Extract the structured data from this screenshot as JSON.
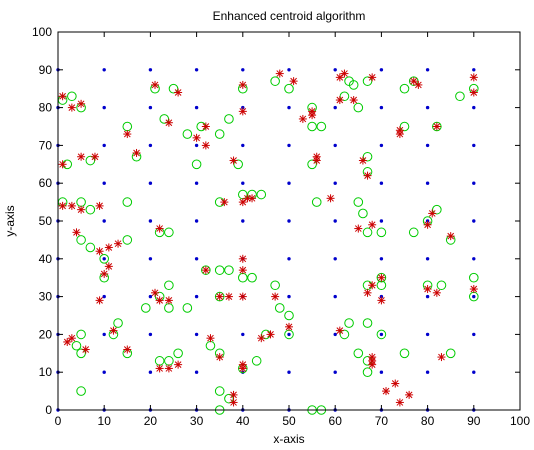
{
  "chart_data": {
    "type": "scatter",
    "title": "Enhanced centroid algorithm",
    "xlabel": "x-axis",
    "ylabel": "y-axis",
    "xlim": [
      0,
      100
    ],
    "ylim": [
      0,
      100
    ],
    "xticks": [
      "0",
      "10",
      "20",
      "30",
      "40",
      "50",
      "60",
      "70",
      "80",
      "90",
      "100"
    ],
    "yticks": [
      "0",
      "10",
      "20",
      "30",
      "40",
      "50",
      "60",
      "70",
      "80",
      "90",
      "100"
    ],
    "grid": false,
    "colors": {
      "anchor": "#0000cc",
      "actual": "#00cc00",
      "estimated": "#cc0000"
    },
    "series": [
      {
        "marker": "dot",
        "color": "#0000cc",
        "grid_x": [
          0,
          10,
          20,
          30,
          40,
          50,
          60,
          70,
          80,
          90
        ],
        "grid_y": [
          0,
          10,
          20,
          30,
          40,
          50,
          60,
          70,
          80,
          90
        ]
      },
      {
        "marker": "circle",
        "color": "#00cc00",
        "points": [
          [
            1,
            82
          ],
          [
            3,
            83
          ],
          [
            5,
            80
          ],
          [
            7,
            66
          ],
          [
            2,
            65
          ],
          [
            5,
            55
          ],
          [
            7,
            53
          ],
          [
            15,
            55
          ],
          [
            5,
            45
          ],
          [
            7,
            43
          ],
          [
            10,
            35
          ],
          [
            15,
            45
          ],
          [
            1,
            55
          ],
          [
            10,
            40
          ],
          [
            5,
            20
          ],
          [
            5,
            15
          ],
          [
            4,
            17
          ],
          [
            12,
            20
          ],
          [
            13,
            23
          ],
          [
            15,
            15
          ],
          [
            5,
            5
          ],
          [
            19,
            27
          ],
          [
            22,
            30
          ],
          [
            24,
            33
          ],
          [
            24,
            27
          ],
          [
            28,
            27
          ],
          [
            22,
            47
          ],
          [
            24,
            47
          ],
          [
            21,
            85
          ],
          [
            25,
            85
          ],
          [
            15,
            75
          ],
          [
            17,
            67
          ],
          [
            23,
            77
          ],
          [
            28,
            73
          ],
          [
            35,
            73
          ],
          [
            31,
            75
          ],
          [
            30,
            65
          ],
          [
            37,
            77
          ],
          [
            40,
            85
          ],
          [
            47,
            87
          ],
          [
            50,
            85
          ],
          [
            35,
            55
          ],
          [
            39,
            65
          ],
          [
            40,
            57
          ],
          [
            42,
            57
          ],
          [
            44,
            57
          ],
          [
            32,
            37
          ],
          [
            35,
            37
          ],
          [
            37,
            37
          ],
          [
            35,
            30
          ],
          [
            40,
            35
          ],
          [
            42,
            35
          ],
          [
            47,
            33
          ],
          [
            48,
            27
          ],
          [
            50,
            25
          ],
          [
            50,
            20
          ],
          [
            45,
            20
          ],
          [
            43,
            13
          ],
          [
            40,
            11
          ],
          [
            33,
            17
          ],
          [
            35,
            15
          ],
          [
            22,
            13
          ],
          [
            24,
            13
          ],
          [
            26,
            15
          ],
          [
            35,
            5
          ],
          [
            37,
            3
          ],
          [
            35,
            0
          ],
          [
            55,
            0
          ],
          [
            57,
            0
          ],
          [
            55,
            80
          ],
          [
            57,
            75
          ],
          [
            55,
            65
          ],
          [
            56,
            55
          ],
          [
            55,
            75
          ],
          [
            63,
            87
          ],
          [
            64,
            86
          ],
          [
            67,
            87
          ],
          [
            62,
            83
          ],
          [
            65,
            80
          ],
          [
            65,
            55
          ],
          [
            67,
            67
          ],
          [
            67,
            63
          ],
          [
            67,
            47
          ],
          [
            70,
            47
          ],
          [
            66,
            52
          ],
          [
            67,
            33
          ],
          [
            70,
            35
          ],
          [
            70,
            33
          ],
          [
            67,
            23
          ],
          [
            70,
            20
          ],
          [
            62,
            20
          ],
          [
            63,
            23
          ],
          [
            65,
            15
          ],
          [
            67,
            13
          ],
          [
            67,
            10
          ],
          [
            75,
            15
          ],
          [
            75,
            75
          ],
          [
            77,
            87
          ],
          [
            75,
            85
          ],
          [
            82,
            75
          ],
          [
            80,
            50
          ],
          [
            82,
            53
          ],
          [
            77,
            47
          ],
          [
            80,
            33
          ],
          [
            83,
            33
          ],
          [
            85,
            45
          ],
          [
            85,
            15
          ],
          [
            87,
            83
          ],
          [
            90,
            85
          ],
          [
            90,
            35
          ],
          [
            90,
            30
          ]
        ]
      },
      {
        "marker": "plus",
        "color": "#cc0000",
        "points": [
          [
            1,
            83
          ],
          [
            3,
            80
          ],
          [
            5,
            81
          ],
          [
            8,
            67
          ],
          [
            1,
            65
          ],
          [
            5,
            67
          ],
          [
            1,
            54
          ],
          [
            3,
            54
          ],
          [
            5,
            53
          ],
          [
            9,
            54
          ],
          [
            4,
            47
          ],
          [
            9,
            42
          ],
          [
            11,
            43
          ],
          [
            13,
            44
          ],
          [
            11,
            38
          ],
          [
            10,
            36
          ],
          [
            9,
            29
          ],
          [
            12,
            21
          ],
          [
            2,
            18
          ],
          [
            3,
            19
          ],
          [
            6,
            16
          ],
          [
            15,
            16
          ],
          [
            22,
            29
          ],
          [
            24,
            29
          ],
          [
            21,
            31
          ],
          [
            22,
            48
          ],
          [
            21,
            86
          ],
          [
            26,
            84
          ],
          [
            15,
            73
          ],
          [
            17,
            68
          ],
          [
            24,
            76
          ],
          [
            30,
            72
          ],
          [
            32,
            75
          ],
          [
            32,
            70
          ],
          [
            38,
            66
          ],
          [
            40,
            79
          ],
          [
            40,
            86
          ],
          [
            48,
            89
          ],
          [
            51,
            87
          ],
          [
            36,
            55
          ],
          [
            40,
            55
          ],
          [
            41,
            56
          ],
          [
            42,
            56
          ],
          [
            32,
            37
          ],
          [
            35,
            30
          ],
          [
            37,
            30
          ],
          [
            40,
            37
          ],
          [
            40,
            30
          ],
          [
            40,
            40
          ],
          [
            47,
            30
          ],
          [
            50,
            22
          ],
          [
            44,
            19
          ],
          [
            46,
            20
          ],
          [
            40,
            12
          ],
          [
            33,
            19
          ],
          [
            35,
            14
          ],
          [
            22,
            11
          ],
          [
            24,
            11
          ],
          [
            26,
            12
          ],
          [
            38,
            2
          ],
          [
            38,
            4
          ],
          [
            40,
            11
          ],
          [
            53,
            77
          ],
          [
            55,
            78
          ],
          [
            56,
            67
          ],
          [
            56,
            66
          ],
          [
            59,
            56
          ],
          [
            55,
            79
          ],
          [
            61,
            88
          ],
          [
            62,
            89
          ],
          [
            68,
            88
          ],
          [
            61,
            82
          ],
          [
            64,
            82
          ],
          [
            66,
            66
          ],
          [
            67,
            62
          ],
          [
            65,
            48
          ],
          [
            68,
            49
          ],
          [
            68,
            33
          ],
          [
            70,
            35
          ],
          [
            67,
            31
          ],
          [
            70,
            29
          ],
          [
            61,
            21
          ],
          [
            68,
            13
          ],
          [
            68,
            12
          ],
          [
            68,
            14
          ],
          [
            71,
            5
          ],
          [
            73,
            7
          ],
          [
            74,
            2
          ],
          [
            76,
            4
          ],
          [
            74,
            74
          ],
          [
            74,
            73
          ],
          [
            77,
            87
          ],
          [
            78,
            86
          ],
          [
            82,
            75
          ],
          [
            80,
            49
          ],
          [
            81,
            52
          ],
          [
            80,
            32
          ],
          [
            82,
            31
          ],
          [
            83,
            14
          ],
          [
            85,
            46
          ],
          [
            90,
            84
          ],
          [
            90,
            88
          ],
          [
            90,
            32
          ]
        ]
      }
    ]
  }
}
